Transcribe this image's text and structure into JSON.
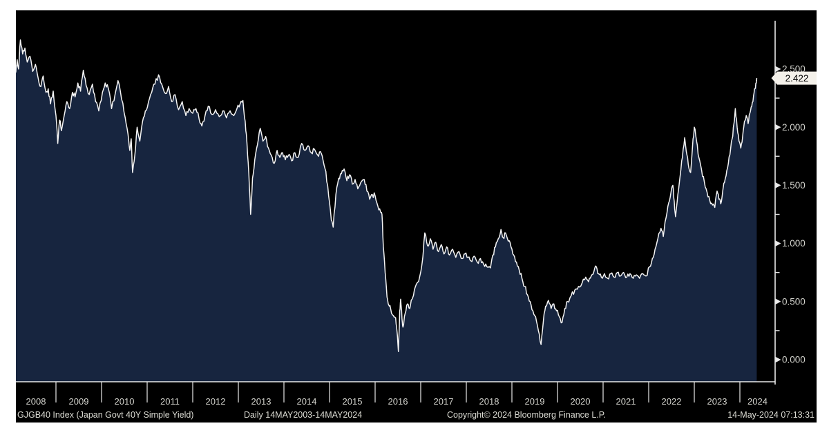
{
  "window": {
    "app": "Bloomberg Terminal chart",
    "background": "#ffffff",
    "panel_background": "#000000"
  },
  "statusbar": {
    "security": "GJGB40 Index (Japan Govt 40Y Simple Yield)",
    "period": "Daily 14MAY2003-14MAY2024",
    "copyright": "Copyright© 2024 Bloomberg Finance L.P.",
    "timestamp": "14-May-2024 07:13:31"
  },
  "chart_data": {
    "type": "area",
    "title": "",
    "xlabel": "",
    "ylabel": "",
    "grid": false,
    "legend_position": "none",
    "x_ticks": [
      "2008",
      "2009",
      "2010",
      "2011",
      "2012",
      "2013",
      "2014",
      "2015",
      "2016",
      "2017",
      "2018",
      "2019",
      "2020",
      "2021",
      "2022",
      "2023",
      "2024"
    ],
    "y_ticks": [
      {
        "value": 0.0,
        "label": "0.000"
      },
      {
        "value": 0.5,
        "label": "0.500"
      },
      {
        "value": 1.0,
        "label": "1.000"
      },
      {
        "value": 1.5,
        "label": "1.500"
      },
      {
        "value": 2.0,
        "label": "2.000"
      },
      {
        "value": 2.5,
        "label": "2.500"
      }
    ],
    "y_minor_ticks": [
      0.25,
      0.75,
      1.25,
      1.75,
      2.25
    ],
    "xlim": [
      2008.1,
      2024.8
    ],
    "ylim": [
      0.0,
      2.5
    ],
    "last_point": [
      2024.37,
      2.422
    ],
    "last_value_label": "2.422",
    "colors": {
      "line": "#f4f4f4",
      "area": "#17253f",
      "axis": "#e9e9e9",
      "tick_label": "#d3d3cd",
      "badge_bg": "#f4f1ea",
      "badge_text": "#000000"
    },
    "series": [
      {
        "name": "GJGB40 Index (Japan Govt 40Y Simple Yield)",
        "points": [
          [
            2008.12,
            2.47
          ],
          [
            2008.15,
            2.58
          ],
          [
            2008.18,
            2.5
          ],
          [
            2008.22,
            2.75
          ],
          [
            2008.27,
            2.63
          ],
          [
            2008.32,
            2.68
          ],
          [
            2008.37,
            2.56
          ],
          [
            2008.43,
            2.61
          ],
          [
            2008.49,
            2.48
          ],
          [
            2008.55,
            2.54
          ],
          [
            2008.61,
            2.42
          ],
          [
            2008.67,
            2.35
          ],
          [
            2008.72,
            2.44
          ],
          [
            2008.78,
            2.3
          ],
          [
            2008.83,
            2.33
          ],
          [
            2008.88,
            2.2
          ],
          [
            2008.94,
            2.31
          ],
          [
            2009.0,
            2.1
          ],
          [
            2009.04,
            1.86
          ],
          [
            2009.08,
            2.06
          ],
          [
            2009.12,
            1.97
          ],
          [
            2009.18,
            2.1
          ],
          [
            2009.24,
            2.22
          ],
          [
            2009.3,
            2.16
          ],
          [
            2009.36,
            2.3
          ],
          [
            2009.42,
            2.26
          ],
          [
            2009.48,
            2.38
          ],
          [
            2009.54,
            2.31
          ],
          [
            2009.6,
            2.49
          ],
          [
            2009.66,
            2.36
          ],
          [
            2009.73,
            2.28
          ],
          [
            2009.8,
            2.37
          ],
          [
            2009.87,
            2.22
          ],
          [
            2009.94,
            2.14
          ],
          [
            2010.02,
            2.3
          ],
          [
            2010.08,
            2.38
          ],
          [
            2010.15,
            2.33
          ],
          [
            2010.22,
            2.16
          ],
          [
            2010.3,
            2.29
          ],
          [
            2010.36,
            2.4
          ],
          [
            2010.44,
            2.24
          ],
          [
            2010.52,
            2.08
          ],
          [
            2010.58,
            1.94
          ],
          [
            2010.62,
            1.8
          ],
          [
            2010.65,
            1.9
          ],
          [
            2010.68,
            1.61
          ],
          [
            2010.73,
            1.76
          ],
          [
            2010.78,
            2.0
          ],
          [
            2010.84,
            1.88
          ],
          [
            2010.9,
            2.05
          ],
          [
            2010.96,
            2.14
          ],
          [
            2011.03,
            2.22
          ],
          [
            2011.1,
            2.3
          ],
          [
            2011.17,
            2.37
          ],
          [
            2011.25,
            2.45
          ],
          [
            2011.32,
            2.37
          ],
          [
            2011.4,
            2.29
          ],
          [
            2011.47,
            2.35
          ],
          [
            2011.54,
            2.22
          ],
          [
            2011.61,
            2.28
          ],
          [
            2011.69,
            2.15
          ],
          [
            2011.77,
            2.22
          ],
          [
            2011.85,
            2.1
          ],
          [
            2011.92,
            2.16
          ],
          [
            2012.0,
            2.12
          ],
          [
            2012.07,
            2.16
          ],
          [
            2012.14,
            2.07
          ],
          [
            2012.2,
            2.01
          ],
          [
            2012.27,
            2.1
          ],
          [
            2012.34,
            2.18
          ],
          [
            2012.42,
            2.11
          ],
          [
            2012.5,
            2.15
          ],
          [
            2012.58,
            2.09
          ],
          [
            2012.66,
            2.14
          ],
          [
            2012.74,
            2.08
          ],
          [
            2012.82,
            2.14
          ],
          [
            2012.9,
            2.1
          ],
          [
            2012.97,
            2.16
          ],
          [
            2013.04,
            2.2
          ],
          [
            2013.1,
            2.23
          ],
          [
            2013.15,
            2.05
          ],
          [
            2013.19,
            1.86
          ],
          [
            2013.23,
            1.6
          ],
          [
            2013.27,
            1.25
          ],
          [
            2013.31,
            1.56
          ],
          [
            2013.36,
            1.72
          ],
          [
            2013.42,
            1.85
          ],
          [
            2013.48,
            1.99
          ],
          [
            2013.54,
            1.88
          ],
          [
            2013.6,
            1.92
          ],
          [
            2013.66,
            1.82
          ],
          [
            2013.72,
            1.76
          ],
          [
            2013.79,
            1.69
          ],
          [
            2013.85,
            1.8
          ],
          [
            2013.91,
            1.74
          ],
          [
            2013.97,
            1.78
          ],
          [
            2014.03,
            1.72
          ],
          [
            2014.1,
            1.76
          ],
          [
            2014.17,
            1.71
          ],
          [
            2014.24,
            1.78
          ],
          [
            2014.31,
            1.74
          ],
          [
            2014.39,
            1.86
          ],
          [
            2014.46,
            1.8
          ],
          [
            2014.53,
            1.84
          ],
          [
            2014.6,
            1.78
          ],
          [
            2014.67,
            1.81
          ],
          [
            2014.74,
            1.76
          ],
          [
            2014.8,
            1.79
          ],
          [
            2014.86,
            1.71
          ],
          [
            2014.92,
            1.62
          ],
          [
            2014.98,
            1.41
          ],
          [
            2015.04,
            1.2
          ],
          [
            2015.08,
            1.14
          ],
          [
            2015.14,
            1.42
          ],
          [
            2015.2,
            1.56
          ],
          [
            2015.26,
            1.6
          ],
          [
            2015.32,
            1.64
          ],
          [
            2015.38,
            1.54
          ],
          [
            2015.44,
            1.59
          ],
          [
            2015.5,
            1.51
          ],
          [
            2015.56,
            1.55
          ],
          [
            2015.62,
            1.47
          ],
          [
            2015.68,
            1.52
          ],
          [
            2015.76,
            1.55
          ],
          [
            2015.82,
            1.45
          ],
          [
            2015.88,
            1.38
          ],
          [
            2015.94,
            1.42
          ],
          [
            2016.0,
            1.41
          ],
          [
            2016.06,
            1.32
          ],
          [
            2016.12,
            1.27
          ],
          [
            2016.15,
            1.25
          ],
          [
            2016.18,
            0.97
          ],
          [
            2016.22,
            0.75
          ],
          [
            2016.26,
            0.54
          ],
          [
            2016.3,
            0.47
          ],
          [
            2016.34,
            0.44
          ],
          [
            2016.4,
            0.38
          ],
          [
            2016.45,
            0.36
          ],
          [
            2016.48,
            0.24
          ],
          [
            2016.51,
            0.07
          ],
          [
            2016.54,
            0.42
          ],
          [
            2016.56,
            0.52
          ],
          [
            2016.59,
            0.35
          ],
          [
            2016.61,
            0.28
          ],
          [
            2016.66,
            0.4
          ],
          [
            2016.71,
            0.48
          ],
          [
            2016.76,
            0.44
          ],
          [
            2016.81,
            0.52
          ],
          [
            2016.86,
            0.6
          ],
          [
            2016.92,
            0.66
          ],
          [
            2016.97,
            0.7
          ],
          [
            2017.02,
            0.8
          ],
          [
            2017.06,
            0.95
          ],
          [
            2017.09,
            1.09
          ],
          [
            2017.15,
            0.98
          ],
          [
            2017.21,
            1.04
          ],
          [
            2017.27,
            0.95
          ],
          [
            2017.33,
            1.01
          ],
          [
            2017.39,
            0.93
          ],
          [
            2017.45,
            0.99
          ],
          [
            2017.51,
            0.91
          ],
          [
            2017.57,
            0.97
          ],
          [
            2017.63,
            0.9
          ],
          [
            2017.7,
            0.95
          ],
          [
            2017.77,
            0.88
          ],
          [
            2017.84,
            0.93
          ],
          [
            2017.91,
            0.87
          ],
          [
            2017.97,
            0.91
          ],
          [
            2018.04,
            0.88
          ],
          [
            2018.1,
            0.85
          ],
          [
            2018.17,
            0.89
          ],
          [
            2018.24,
            0.84
          ],
          [
            2018.31,
            0.87
          ],
          [
            2018.38,
            0.82
          ],
          [
            2018.45,
            0.8
          ],
          [
            2018.53,
            0.79
          ],
          [
            2018.58,
            0.9
          ],
          [
            2018.64,
            0.97
          ],
          [
            2018.7,
            1.04
          ],
          [
            2018.76,
            1.12
          ],
          [
            2018.81,
            1.05
          ],
          [
            2018.86,
            1.09
          ],
          [
            2018.92,
            1.02
          ],
          [
            2018.98,
            0.97
          ],
          [
            2019.04,
            0.9
          ],
          [
            2019.1,
            0.84
          ],
          [
            2019.16,
            0.77
          ],
          [
            2019.22,
            0.7
          ],
          [
            2019.28,
            0.63
          ],
          [
            2019.34,
            0.56
          ],
          [
            2019.4,
            0.5
          ],
          [
            2019.46,
            0.42
          ],
          [
            2019.52,
            0.37
          ],
          [
            2019.58,
            0.25
          ],
          [
            2019.64,
            0.13
          ],
          [
            2019.69,
            0.33
          ],
          [
            2019.74,
            0.46
          ],
          [
            2019.8,
            0.51
          ],
          [
            2019.86,
            0.44
          ],
          [
            2019.92,
            0.48
          ],
          [
            2019.98,
            0.42
          ],
          [
            2020.04,
            0.37
          ],
          [
            2020.1,
            0.32
          ],
          [
            2020.16,
            0.44
          ],
          [
            2020.22,
            0.5
          ],
          [
            2020.3,
            0.55
          ],
          [
            2020.38,
            0.6
          ],
          [
            2020.46,
            0.63
          ],
          [
            2020.54,
            0.66
          ],
          [
            2020.62,
            0.71
          ],
          [
            2020.68,
            0.67
          ],
          [
            2020.74,
            0.72
          ],
          [
            2020.8,
            0.76
          ],
          [
            2020.85,
            0.8
          ],
          [
            2020.9,
            0.74
          ],
          [
            2020.96,
            0.71
          ],
          [
            2021.03,
            0.74
          ],
          [
            2021.1,
            0.7
          ],
          [
            2021.17,
            0.74
          ],
          [
            2021.24,
            0.71
          ],
          [
            2021.31,
            0.75
          ],
          [
            2021.38,
            0.72
          ],
          [
            2021.45,
            0.75
          ],
          [
            2021.52,
            0.71
          ],
          [
            2021.59,
            0.74
          ],
          [
            2021.66,
            0.7
          ],
          [
            2021.73,
            0.73
          ],
          [
            2021.8,
            0.7
          ],
          [
            2021.87,
            0.74
          ],
          [
            2021.94,
            0.72
          ],
          [
            2022.02,
            0.8
          ],
          [
            2022.08,
            0.87
          ],
          [
            2022.14,
            0.95
          ],
          [
            2022.2,
            1.04
          ],
          [
            2022.27,
            1.13
          ],
          [
            2022.32,
            1.06
          ],
          [
            2022.38,
            1.22
          ],
          [
            2022.44,
            1.35
          ],
          [
            2022.49,
            1.44
          ],
          [
            2022.53,
            1.5
          ],
          [
            2022.56,
            1.36
          ],
          [
            2022.59,
            1.23
          ],
          [
            2022.64,
            1.42
          ],
          [
            2022.69,
            1.58
          ],
          [
            2022.74,
            1.74
          ],
          [
            2022.79,
            1.91
          ],
          [
            2022.84,
            1.76
          ],
          [
            2022.88,
            1.65
          ],
          [
            2022.92,
            1.61
          ],
          [
            2022.96,
            1.83
          ],
          [
            2023.0,
            2.0
          ],
          [
            2023.05,
            1.88
          ],
          [
            2023.1,
            1.74
          ],
          [
            2023.16,
            1.63
          ],
          [
            2023.22,
            1.53
          ],
          [
            2023.28,
            1.44
          ],
          [
            2023.34,
            1.37
          ],
          [
            2023.4,
            1.33
          ],
          [
            2023.45,
            1.31
          ],
          [
            2023.5,
            1.45
          ],
          [
            2023.54,
            1.38
          ],
          [
            2023.58,
            1.34
          ],
          [
            2023.63,
            1.47
          ],
          [
            2023.68,
            1.56
          ],
          [
            2023.73,
            1.65
          ],
          [
            2023.78,
            1.76
          ],
          [
            2023.83,
            1.9
          ],
          [
            2023.87,
            2.03
          ],
          [
            2023.9,
            2.16
          ],
          [
            2023.94,
            2.0
          ],
          [
            2023.98,
            1.88
          ],
          [
            2024.02,
            1.82
          ],
          [
            2024.06,
            1.92
          ],
          [
            2024.1,
            2.05
          ],
          [
            2024.14,
            2.1
          ],
          [
            2024.18,
            2.03
          ],
          [
            2024.22,
            2.12
          ],
          [
            2024.26,
            2.18
          ],
          [
            2024.3,
            2.27
          ],
          [
            2024.33,
            2.33
          ],
          [
            2024.36,
            2.38
          ],
          [
            2024.37,
            2.422
          ]
        ]
      }
    ]
  }
}
